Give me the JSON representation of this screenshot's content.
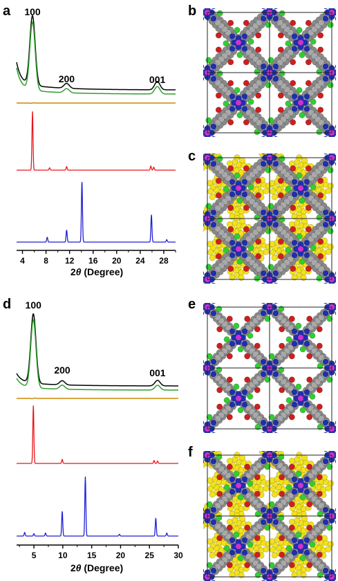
{
  "panels": {
    "a": "a",
    "b": "b",
    "c": "c",
    "d": "d",
    "e": "e",
    "f": "f"
  },
  "colors": {
    "experimental": "#000000",
    "refined": "#2ca02c",
    "difference": "#cc8800",
    "simulated_eclipsed": "#e8151b",
    "simulated_staggered": "#1f1fd6",
    "carbon": "#8a8a8a",
    "nitrogen": "#1f2fb0",
    "oxygen": "#cc2020",
    "chlorine": "#33cc33",
    "metal": "#cc33cc",
    "guest": "#f2e21e"
  },
  "chart_data": [
    {
      "type": "line",
      "panel": "a",
      "xlabel": "2θ (Degree)",
      "xlim": [
        3,
        30
      ],
      "xticks": [
        4,
        8,
        12,
        16,
        20,
        24,
        28
      ],
      "annotations": [
        {
          "text": "100",
          "x": 5.7
        },
        {
          "text": "200",
          "x": 11.5
        },
        {
          "text": "001",
          "x": 26.9
        }
      ],
      "series": [
        {
          "key": "experimental",
          "peaks": [
            [
              5.7,
              1.0
            ],
            [
              11.5,
              0.07
            ],
            [
              26.9,
              0.12
            ]
          ]
        },
        {
          "key": "refined",
          "peaks": [
            [
              5.7,
              1.0
            ],
            [
              11.5,
              0.06
            ],
            [
              26.9,
              0.11
            ]
          ]
        },
        {
          "key": "difference",
          "peaks": [
            [
              5.7,
              0.05
            ]
          ]
        },
        {
          "key": "simulated_eclipsed",
          "peaks": [
            [
              5.7,
              1.0
            ],
            [
              8.6,
              0.04
            ],
            [
              11.5,
              0.06
            ],
            [
              25.8,
              0.07
            ],
            [
              26.3,
              0.05
            ]
          ]
        },
        {
          "key": "simulated_staggered",
          "peaks": [
            [
              8.2,
              0.08
            ],
            [
              11.5,
              0.2
            ],
            [
              14.1,
              1.0
            ],
            [
              25.9,
              0.45
            ],
            [
              28.5,
              0.04
            ]
          ]
        }
      ]
    },
    {
      "type": "line",
      "panel": "d",
      "xlabel": "2θ (Degree)",
      "xlim": [
        2,
        30
      ],
      "xticks": [
        5,
        10,
        15,
        20,
        25,
        30
      ],
      "annotations": [
        {
          "text": "100",
          "x": 4.9
        },
        {
          "text": "200",
          "x": 9.9
        },
        {
          "text": "001",
          "x": 26.4
        }
      ],
      "series": [
        {
          "key": "experimental",
          "peaks": [
            [
              4.9,
              1.0
            ],
            [
              9.9,
              0.06
            ],
            [
              26.4,
              0.08
            ]
          ]
        },
        {
          "key": "refined",
          "peaks": [
            [
              4.9,
              1.0
            ],
            [
              9.9,
              0.06
            ],
            [
              26.4,
              0.07
            ]
          ]
        },
        {
          "key": "difference",
          "peaks": [
            [
              4.9,
              0.05
            ]
          ]
        },
        {
          "key": "simulated_eclipsed",
          "peaks": [
            [
              4.9,
              1.0
            ],
            [
              9.9,
              0.07
            ],
            [
              25.8,
              0.05
            ],
            [
              26.4,
              0.04
            ]
          ]
        },
        {
          "key": "simulated_staggered",
          "peaks": [
            [
              3.4,
              0.06
            ],
            [
              5.0,
              0.04
            ],
            [
              7.0,
              0.05
            ],
            [
              9.9,
              0.42
            ],
            [
              13.9,
              1.0
            ],
            [
              19.8,
              0.03
            ],
            [
              26.1,
              0.3
            ],
            [
              28.0,
              0.05
            ]
          ]
        }
      ]
    }
  ]
}
